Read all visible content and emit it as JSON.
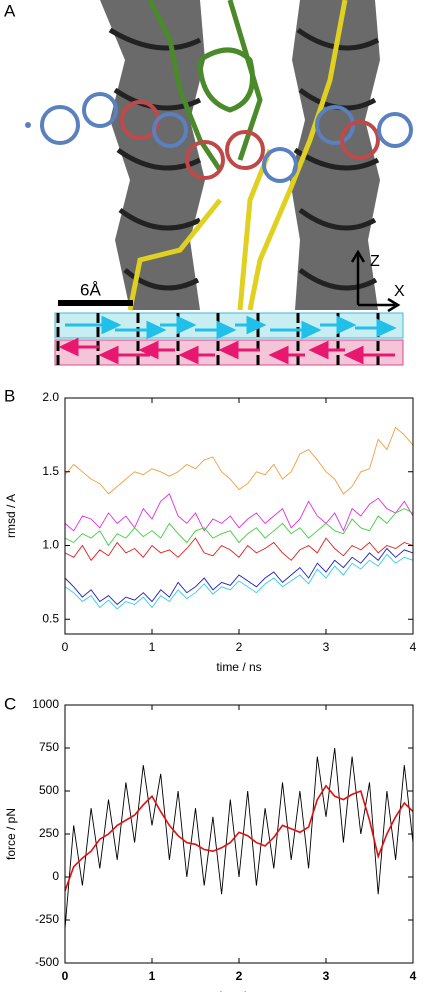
{
  "panel_a": {
    "panel_label": "A",
    "scale_label": "6Å",
    "axis_z": "Z",
    "axis_x": "X"
  },
  "chart_data": [
    {
      "type": "line",
      "panel_label": "B",
      "x_label": "time / ns",
      "y_label": "rmsd / A",
      "xlim": [
        0,
        4
      ],
      "xticks": [
        0,
        1,
        2,
        3,
        4
      ],
      "ylim": [
        0.4,
        2.0
      ],
      "yticks": [
        {
          "value": 0.5,
          "label": "0.5"
        },
        {
          "value": 1,
          "label": "1.0"
        },
        {
          "value": 1.5,
          "label": "1.5"
        },
        {
          "value": 2,
          "label": "2.0"
        }
      ],
      "x": [
        0,
        0.1,
        0.2,
        0.3,
        0.4,
        0.5,
        0.6,
        0.7,
        0.8,
        0.9,
        1,
        1.1,
        1.2,
        1.3,
        1.4,
        1.5,
        1.6,
        1.7,
        1.8,
        1.9,
        2,
        2.1,
        2.2,
        2.3,
        2.4,
        2.5,
        2.6,
        2.7,
        2.8,
        2.9,
        3,
        3.1,
        3.2,
        3.3,
        3.4,
        3.5,
        3.6,
        3.7,
        3.8,
        3.9,
        4
      ],
      "series": [
        {
          "color": "#f0a040",
          "values": [
            1.48,
            1.55,
            1.5,
            1.45,
            1.42,
            1.35,
            1.4,
            1.45,
            1.5,
            1.48,
            1.52,
            1.5,
            1.47,
            1.5,
            1.55,
            1.52,
            1.58,
            1.6,
            1.5,
            1.45,
            1.38,
            1.42,
            1.5,
            1.48,
            1.55,
            1.45,
            1.5,
            1.62,
            1.65,
            1.58,
            1.5,
            1.45,
            1.35,
            1.4,
            1.5,
            1.52,
            1.72,
            1.65,
            1.8,
            1.75,
            1.68
          ]
        },
        {
          "color": "#e030e0",
          "values": [
            1.15,
            1.1,
            1.2,
            1.18,
            1.12,
            1.22,
            1.15,
            1.2,
            1.12,
            1.25,
            1.18,
            1.3,
            1.35,
            1.2,
            1.15,
            1.22,
            1.1,
            1.18,
            1.15,
            1.2,
            1.12,
            1.18,
            1.22,
            1.15,
            1.2,
            1.25,
            1.12,
            1.18,
            1.3,
            1.2,
            1.15,
            1.22,
            1.1,
            1.25,
            1.2,
            1.28,
            1.32,
            1.25,
            1.22,
            1.3,
            1.2
          ]
        },
        {
          "color": "#40d040",
          "values": [
            1.05,
            1.02,
            1.08,
            1.05,
            1.1,
            1.0,
            1.08,
            1.05,
            1.12,
            1.06,
            1.1,
            1.05,
            1.15,
            1.08,
            1.02,
            1.1,
            1.12,
            1.05,
            1.08,
            1.1,
            1.02,
            1.08,
            1.12,
            1.05,
            1.1,
            1.15,
            1.08,
            1.12,
            1.05,
            1.1,
            1.15,
            1.1,
            1.08,
            1.18,
            1.12,
            1.1,
            1.2,
            1.15,
            1.22,
            1.25,
            1.22
          ]
        },
        {
          "color": "#e02020",
          "values": [
            0.95,
            0.92,
            1.0,
            0.9,
            0.97,
            0.93,
            1.02,
            0.95,
            0.98,
            0.92,
            1.0,
            0.95,
            0.97,
            0.92,
            0.98,
            1.05,
            0.95,
            0.93,
            1.0,
            0.97,
            0.92,
            1.0,
            0.95,
            0.98,
            1.02,
            0.95,
            0.9,
            0.97,
            1.0,
            0.95,
            1.05,
            0.98,
            0.93,
            1.0,
            0.97,
            1.02,
            0.95,
            1.0,
            0.98,
            1.02,
            1.0
          ]
        },
        {
          "color": "#2020c0",
          "values": [
            0.78,
            0.72,
            0.65,
            0.7,
            0.62,
            0.66,
            0.6,
            0.65,
            0.63,
            0.68,
            0.62,
            0.7,
            0.65,
            0.75,
            0.68,
            0.72,
            0.78,
            0.7,
            0.75,
            0.73,
            0.8,
            0.76,
            0.72,
            0.78,
            0.82,
            0.75,
            0.8,
            0.85,
            0.78,
            0.88,
            0.82,
            0.9,
            0.85,
            0.92,
            0.88,
            0.95,
            0.9,
            0.98,
            0.92,
            0.97,
            0.95
          ]
        },
        {
          "color": "#30d0e0",
          "values": [
            0.72,
            0.68,
            0.62,
            0.66,
            0.58,
            0.63,
            0.57,
            0.62,
            0.6,
            0.65,
            0.58,
            0.66,
            0.62,
            0.7,
            0.64,
            0.68,
            0.74,
            0.67,
            0.72,
            0.7,
            0.76,
            0.72,
            0.68,
            0.74,
            0.78,
            0.72,
            0.76,
            0.8,
            0.74,
            0.84,
            0.78,
            0.86,
            0.8,
            0.88,
            0.84,
            0.9,
            0.86,
            0.94,
            0.88,
            0.92,
            0.9
          ]
        }
      ]
    },
    {
      "type": "line",
      "panel_label": "C",
      "x_label": "time / ns",
      "y_label": "force / pN",
      "xlim": [
        0,
        4
      ],
      "xticks": [
        0,
        1,
        2,
        3,
        4
      ],
      "ylim": [
        -500,
        1000
      ],
      "yticks": [
        -500,
        -250,
        0,
        250,
        500,
        750,
        1000
      ],
      "x": [
        0,
        0.1,
        0.2,
        0.3,
        0.4,
        0.5,
        0.6,
        0.7,
        0.8,
        0.9,
        1,
        1.1,
        1.2,
        1.3,
        1.4,
        1.5,
        1.6,
        1.7,
        1.8,
        1.9,
        2,
        2.1,
        2.2,
        2.3,
        2.4,
        2.5,
        2.6,
        2.7,
        2.8,
        2.9,
        3,
        3.1,
        3.2,
        3.3,
        3.4,
        3.5,
        3.6,
        3.7,
        3.8,
        3.9,
        4
      ],
      "series": [
        {
          "color": "#000000",
          "values": [
            -300,
            300,
            -50,
            400,
            50,
            450,
            100,
            550,
            200,
            650,
            300,
            600,
            100,
            500,
            0,
            400,
            -50,
            350,
            -100,
            450,
            0,
            500,
            -50,
            400,
            50,
            550,
            100,
            500,
            50,
            700,
            350,
            750,
            200,
            700,
            250,
            550,
            -100,
            500,
            100,
            650,
            200
          ]
        },
        {
          "color": "#e01010",
          "values": [
            -80,
            60,
            110,
            150,
            220,
            250,
            300,
            330,
            360,
            420,
            470,
            380,
            300,
            240,
            200,
            190,
            160,
            150,
            170,
            200,
            260,
            240,
            200,
            180,
            230,
            300,
            280,
            260,
            290,
            450,
            530,
            470,
            450,
            480,
            500,
            330,
            120,
            250,
            350,
            430,
            380
          ]
        }
      ]
    }
  ]
}
